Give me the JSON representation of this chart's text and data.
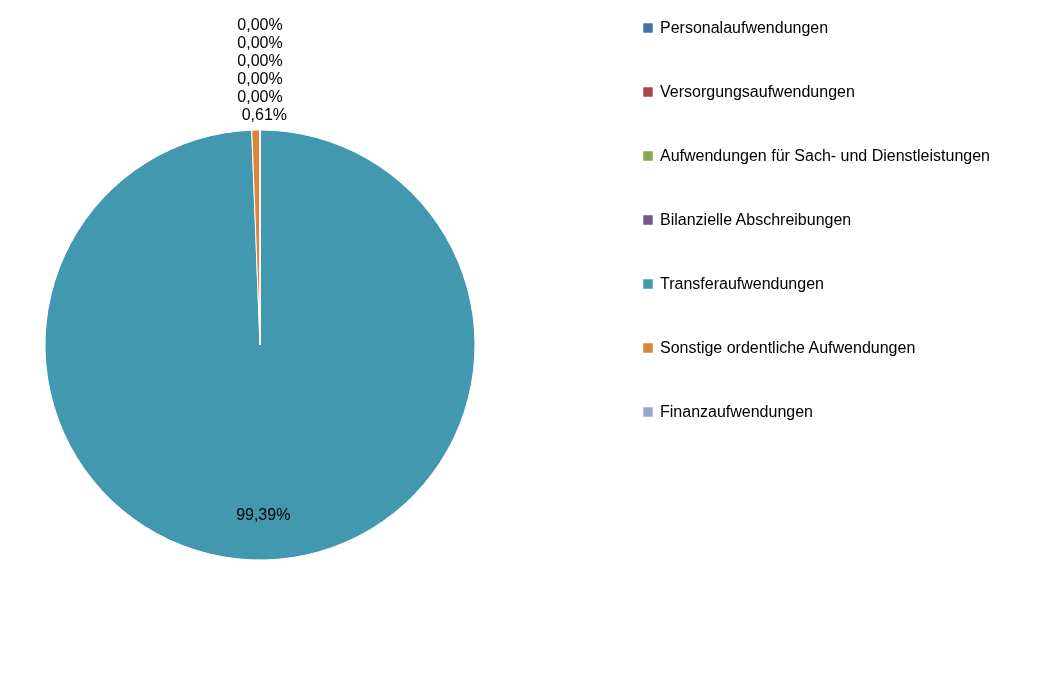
{
  "chart_data": {
    "type": "pie",
    "categories": [
      "Personalaufwendungen",
      "Versorgungsaufwendungen",
      "Aufwendungen für Sach- und Dienstleistungen",
      "Bilanzielle Abschreibungen",
      "Transferaufwendungen",
      "Sonstige ordentliche Aufwendungen",
      "Finanzaufwendungen"
    ],
    "values": [
      0,
      0,
      0,
      0,
      99.39,
      0.61,
      0
    ],
    "colors": [
      "#4572a7",
      "#aa4643",
      "#89a54e",
      "#71588f",
      "#4198af",
      "#db843d",
      "#93a9cf"
    ],
    "value_labels": [
      "0,00%",
      "0,00%",
      "0,00%",
      "0,00%",
      "99,39%",
      "0,61%",
      "0,00%"
    ],
    "legend": "right"
  }
}
